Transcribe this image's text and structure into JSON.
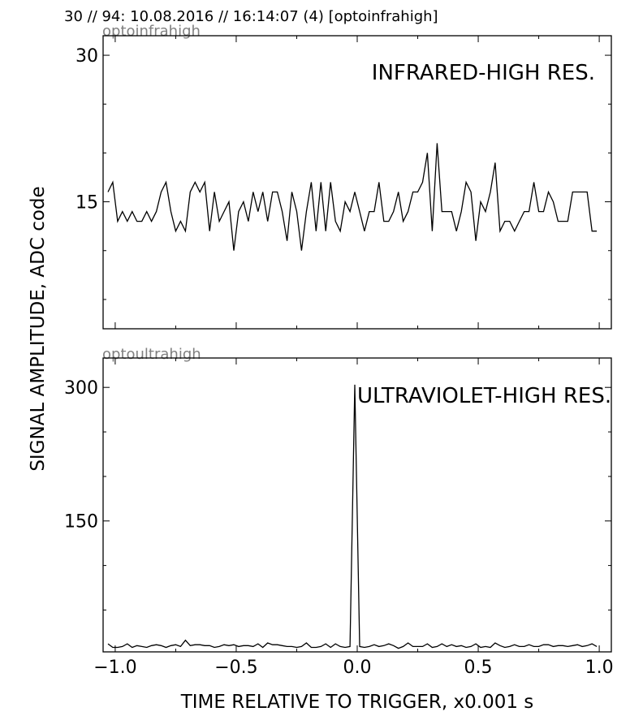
{
  "header": "30 // 94:   10.08.2016 // 16:14:07 (4)  [optoinfrahigh]",
  "xlabel": "TIME RELATIVE TO TRIGGER,   x0.001 s",
  "ylabel": "SIGNAL AMPLITUDE,  ADC code",
  "colors": {
    "line": "#000000",
    "panel_label": "#808080",
    "background": "#ffffff"
  },
  "chart_data": [
    {
      "type": "line",
      "panel_label": "optoinfrahigh",
      "title": "INFRARED-HIGH RES.",
      "xlim": [
        -1.05,
        1.05
      ],
      "ylim": [
        2,
        32
      ],
      "xticks": [
        -1.0,
        -0.5,
        0.0,
        0.5,
        1.0
      ],
      "xtick_labels": [
        "−1.0",
        "−0.5",
        "0.0",
        "0.5",
        "1.0"
      ],
      "yticks": [
        15,
        30
      ],
      "ytick_labels": [
        "15",
        "30"
      ],
      "grid": false,
      "x_start": -1.03,
      "x_step": 0.02,
      "values": [
        16,
        17,
        13,
        14,
        13,
        14,
        13,
        13,
        14,
        13,
        14,
        16,
        17,
        14,
        12,
        13,
        12,
        16,
        17,
        16,
        17,
        12,
        16,
        13,
        14,
        15,
        10,
        14,
        15,
        13,
        16,
        14,
        16,
        13,
        16,
        16,
        14,
        11,
        16,
        14,
        10,
        14,
        17,
        12,
        17,
        12,
        17,
        13,
        12,
        15,
        14,
        16,
        14,
        12,
        14,
        14,
        17,
        13,
        13,
        14,
        16,
        13,
        14,
        16,
        16,
        17,
        20,
        12,
        21,
        14,
        14,
        14,
        12,
        14,
        17,
        16,
        11,
        15,
        14,
        16,
        19,
        12,
        13,
        13,
        12,
        13,
        14,
        14,
        17,
        14,
        14,
        16,
        15,
        13,
        13,
        13,
        16,
        16,
        16,
        16,
        12,
        12
      ]
    },
    {
      "type": "line",
      "panel_label": "optoultrahigh",
      "title": "ULTRAVIOLET-HIGH RES.",
      "xlim": [
        -1.05,
        1.05
      ],
      "ylim": [
        3,
        333
      ],
      "xticks": [
        -1.0,
        -0.5,
        0.0,
        0.5,
        1.0
      ],
      "xtick_labels": [
        "−1.0",
        "−0.5",
        "0.0",
        "0.5",
        "1.0"
      ],
      "yticks": [
        150,
        300
      ],
      "ytick_labels": [
        "150",
        "300"
      ],
      "grid": false,
      "x_start": -1.03,
      "x_step": 0.02,
      "values": [
        12,
        8,
        8,
        9,
        12,
        8,
        10,
        9,
        8,
        10,
        11,
        10,
        8,
        10,
        11,
        9,
        16,
        10,
        11,
        11,
        10,
        10,
        8,
        9,
        11,
        10,
        11,
        9,
        10,
        10,
        9,
        12,
        8,
        13,
        11,
        11,
        10,
        9,
        9,
        8,
        9,
        13,
        8,
        8,
        9,
        12,
        8,
        12,
        9,
        8,
        9,
        303,
        9,
        8,
        9,
        11,
        9,
        10,
        12,
        10,
        7,
        9,
        13,
        9,
        9,
        9,
        12,
        8,
        9,
        12,
        9,
        11,
        9,
        10,
        8,
        9,
        12,
        8,
        9,
        8,
        13,
        10,
        8,
        9,
        11,
        9,
        9,
        11,
        9,
        9,
        11,
        11,
        9,
        10,
        10,
        9,
        10,
        11,
        9,
        10,
        12,
        9
      ]
    }
  ]
}
